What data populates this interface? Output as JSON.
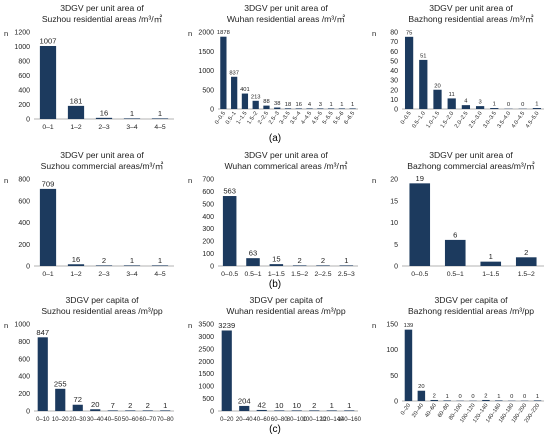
{
  "panel_labels": [
    "(a)",
    "(b)",
    "(c)"
  ],
  "colors": {
    "bar": "#1c3a5e",
    "axis": "#9a9a9a",
    "text": "#222222"
  },
  "chart_data": [
    {
      "type": "bar",
      "title_lines": [
        "3DGV per unit area of",
        "Suzhou residential areas /m³/㎡"
      ],
      "ylabel": "n",
      "ylim": [
        0,
        1200
      ],
      "yticks": [
        0,
        200,
        400,
        600,
        800,
        1000,
        1200
      ],
      "categories": [
        "0–1",
        "1–2",
        "2–3",
        "3–4",
        "4–5"
      ],
      "values": [
        1007,
        181,
        16,
        1,
        1
      ],
      "labels": [
        "1007",
        "181",
        "16",
        "1",
        "1"
      ],
      "rotate_ticks": false
    },
    {
      "type": "bar",
      "title_lines": [
        "3DGV per unit area of",
        "Wuhan residential areas /m³/㎡"
      ],
      "ylabel": "n",
      "ylim": [
        0,
        2000
      ],
      "yticks": [
        0,
        500,
        1000,
        1500,
        2000
      ],
      "categories": [
        "0–0.5",
        "0.5–1",
        "1–1.5",
        "1.5–2",
        "2–2.5",
        "2.5–3",
        "3–3.5",
        "3.5–4",
        "4–4.5",
        "4.5–5",
        "5–5.5",
        "5.5–6",
        "6–6.5"
      ],
      "values": [
        1878,
        837,
        401,
        213,
        88,
        38,
        18,
        16,
        4,
        3,
        1,
        1,
        1
      ],
      "labels": [
        "1878",
        "837",
        "401",
        "213",
        "88",
        "38",
        "18",
        "16",
        "4",
        "3",
        "1",
        "1",
        "1"
      ],
      "rotate_ticks": true
    },
    {
      "type": "bar",
      "title_lines": [
        "3DGV per unit area of",
        "Bazhong residential areas /m³/㎡"
      ],
      "ylabel": "n",
      "ylim": [
        0,
        80
      ],
      "yticks": [
        0,
        10,
        20,
        30,
        40,
        50,
        60,
        70,
        80
      ],
      "categories": [
        "0–0.5",
        "0.5–1.0",
        "1.0–1.5",
        "1.5–2.0",
        "2.0–2.5",
        "2.5–3.0",
        "3.0–3.5",
        "3.5–4.0",
        "4.0–4.5",
        "4.5–5.0"
      ],
      "values": [
        75,
        51,
        20,
        11,
        4,
        3,
        1,
        0,
        0,
        1
      ],
      "labels": [
        "75",
        "51",
        "20",
        "11",
        "4",
        "3",
        "1",
        "0",
        "0",
        "1"
      ],
      "rotate_ticks": true
    },
    {
      "type": "bar",
      "title_lines": [
        "3DGV per unit area of",
        "Suzhou commercial areas/m³/㎡"
      ],
      "ylabel": "n",
      "ylim": [
        0,
        800
      ],
      "yticks": [
        0,
        200,
        400,
        600,
        800
      ],
      "categories": [
        "0–1",
        "1–2",
        "2–3",
        "3–4",
        "4–5"
      ],
      "values": [
        709,
        16,
        2,
        1,
        1
      ],
      "labels": [
        "709",
        "16",
        "2",
        "1",
        "1"
      ],
      "rotate_ticks": false
    },
    {
      "type": "bar",
      "title_lines": [
        "3DGV per unit area of",
        "Wuhan commerical areas /m³/㎡"
      ],
      "ylabel": "n",
      "ylim": [
        0,
        700
      ],
      "yticks": [
        0,
        100,
        200,
        300,
        400,
        500,
        600,
        700
      ],
      "categories": [
        "0–0.5",
        "0.5–1",
        "1–1.5",
        "1.5–2",
        "2–2.5",
        "2.5–3"
      ],
      "values": [
        563,
        63,
        15,
        2,
        2,
        1
      ],
      "labels": [
        "563",
        "63",
        "15",
        "2",
        "2",
        "1"
      ],
      "rotate_ticks": false
    },
    {
      "type": "bar",
      "title_lines": [
        "3DGV per unit area of",
        "Bazhong commercial areas/m³/㎡"
      ],
      "ylabel": "n",
      "ylim": [
        0,
        20
      ],
      "yticks": [
        0,
        5,
        10,
        15,
        20
      ],
      "categories": [
        "0–0.5",
        "0.5–1",
        "1–1.5",
        "1.5–2"
      ],
      "values": [
        19,
        6,
        1,
        2
      ],
      "labels": [
        "19",
        "6",
        "1",
        "2"
      ],
      "rotate_ticks": false
    },
    {
      "type": "bar",
      "title_lines": [
        "3DGV per capita of",
        "Suzhou residential areas /m³/pp"
      ],
      "ylabel": "n",
      "ylim": [
        0,
        1000
      ],
      "yticks": [
        0,
        200,
        400,
        600,
        800,
        1000
      ],
      "categories": [
        "0–10",
        "10–20",
        "20–30",
        "30–40",
        "40–50",
        "50–60",
        "60–70",
        "70–80"
      ],
      "values": [
        847,
        255,
        72,
        20,
        7,
        2,
        2,
        1
      ],
      "labels": [
        "847",
        "255",
        "72",
        "20",
        "7",
        "2",
        "2",
        "1"
      ],
      "rotate_ticks": false
    },
    {
      "type": "bar",
      "title_lines": [
        "3DGV per capita of",
        "Wuhan residential areas /m³/pp"
      ],
      "ylabel": "n",
      "ylim": [
        0,
        3500
      ],
      "yticks": [
        0,
        500,
        1000,
        1500,
        2000,
        2500,
        3000,
        3500
      ],
      "categories": [
        "0–20",
        "20–40",
        "40–60",
        "60–80",
        "80–100",
        "100–120",
        "120–140",
        "140–160"
      ],
      "values": [
        3239,
        204,
        42,
        10,
        10,
        2,
        1,
        1
      ],
      "labels": [
        "3239",
        "204",
        "42",
        "10",
        "10",
        "2",
        "1",
        "1"
      ],
      "rotate_ticks": false
    },
    {
      "type": "bar",
      "title_lines": [
        "3DGV per capita of",
        "Bazhong residential areas /m³/pp"
      ],
      "ylabel": "n",
      "ylim": [
        0,
        150
      ],
      "yticks": [
        0,
        50,
        100,
        150
      ],
      "categories": [
        "0–20",
        "20–40",
        "40–60",
        "60–80",
        "80–100",
        "100–120",
        "120–140",
        "140–160",
        "160–180",
        "180–200",
        "200–220"
      ],
      "values": [
        139,
        20,
        2,
        1,
        0,
        0,
        2,
        1,
        0,
        0,
        1
      ],
      "labels": [
        "139",
        "20",
        "2",
        "1",
        "0",
        "0",
        "2",
        "1",
        "0",
        "0",
        "1"
      ],
      "rotate_ticks": true
    }
  ]
}
